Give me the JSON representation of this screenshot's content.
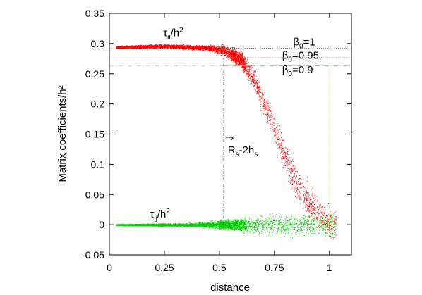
{
  "chart_data": {
    "type": "scatter",
    "xlabel": "distance",
    "ylabel": "Matrix coefficients/h²",
    "xlim": [
      0,
      1.1
    ],
    "ylim": [
      -0.05,
      0.35
    ],
    "grid": false,
    "legend": "none",
    "xticks": [
      {
        "value": 0,
        "label": "0"
      },
      {
        "value": 0.25,
        "label": "0.25"
      },
      {
        "value": 0.5,
        "label": "0.5"
      },
      {
        "value": 0.75,
        "label": "0.75"
      },
      {
        "value": 1,
        "label": "1"
      }
    ],
    "yticks": [
      {
        "value": -0.05,
        "label": "-0.05"
      },
      {
        "value": 0,
        "label": "0"
      },
      {
        "value": 0.05,
        "label": "0.05"
      },
      {
        "value": 0.1,
        "label": "0.1"
      },
      {
        "value": 0.15,
        "label": "0.15"
      },
      {
        "value": 0.2,
        "label": "0.2"
      },
      {
        "value": 0.25,
        "label": "0.25"
      },
      {
        "value": 0.3,
        "label": "0.3"
      },
      {
        "value": 0.35,
        "label": "0.35"
      }
    ],
    "series": [
      {
        "label_main": "τ",
        "label_sub": "ii",
        "label_rest": "/h",
        "label_sup": "2",
        "color": "#ff0000",
        "trend": [
          {
            "x": 0.03,
            "y": 0.294
          },
          {
            "x": 0.25,
            "y": 0.296
          },
          {
            "x": 0.45,
            "y": 0.293
          },
          {
            "x": 0.53,
            "y": 0.288
          },
          {
            "x": 0.6,
            "y": 0.272
          },
          {
            "x": 0.65,
            "y": 0.245
          },
          {
            "x": 0.7,
            "y": 0.205
          },
          {
            "x": 0.75,
            "y": 0.16
          },
          {
            "x": 0.8,
            "y": 0.11
          },
          {
            "x": 0.85,
            "y": 0.07
          },
          {
            "x": 0.9,
            "y": 0.04
          },
          {
            "x": 0.95,
            "y": 0.02
          },
          {
            "x": 1.0,
            "y": 0.005
          },
          {
            "x": 1.03,
            "y": 0.0
          }
        ]
      },
      {
        "label_main": "τ",
        "label_sub": "ij",
        "label_rest": "/h",
        "label_sup": "2",
        "color": "#00cc00",
        "trend": [
          {
            "x": 0.03,
            "y": 0.0
          },
          {
            "x": 0.5,
            "y": 0.0
          },
          {
            "x": 1.03,
            "y": 0.0
          }
        ]
      }
    ],
    "reference_lines": [
      {
        "type": "h",
        "y": 0.292,
        "x_end": 1.1,
        "color": "#333333",
        "dash": "1,2",
        "main": "β",
        "sub": "0",
        "rest": "=1"
      },
      {
        "type": "h",
        "y": 0.277,
        "x_end": 1.1,
        "color": "#ff66ff",
        "dash": "1,2",
        "main": "β",
        "sub": "0",
        "rest": "=0.95"
      },
      {
        "type": "h",
        "y": 0.263,
        "x_end": 1.1,
        "color": "#55cccc",
        "dash": "6,3,1,3",
        "main": "β",
        "sub": "0",
        "rest": "=0.9"
      },
      {
        "type": "v",
        "x": 0.52,
        "y0": 0.0,
        "y1": 0.277,
        "color": "#333333",
        "dash": "4,2,1,2"
      },
      {
        "type": "v",
        "x": 1.0,
        "y0": 0.0,
        "y1": 0.263,
        "color": "#cccc66",
        "dash": "1,2"
      }
    ],
    "annotation": {
      "arrow": "⇒",
      "main": "R",
      "sub1": "s",
      "mid": "-2h",
      "sub2": "s"
    }
  }
}
